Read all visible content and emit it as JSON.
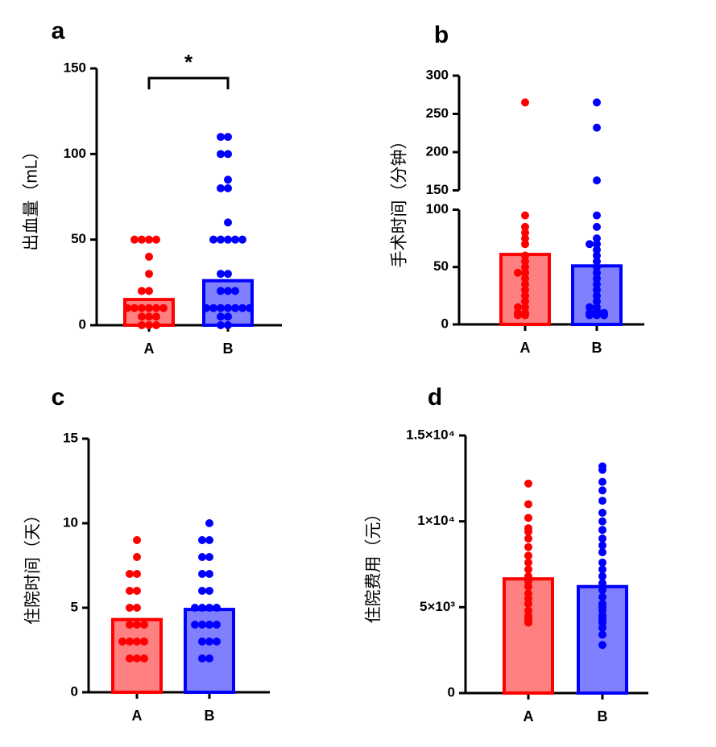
{
  "chart_data": [
    {
      "type": "bar",
      "panel": "a",
      "ylabel": "出血量（mL）",
      "categories": [
        "A",
        "B"
      ],
      "colors": [
        "#ff0000",
        "#0000ff"
      ],
      "values": [
        15,
        26
      ],
      "points": [
        [
          50,
          50,
          50,
          50,
          40,
          30,
          20,
          20,
          10,
          10,
          10,
          10,
          10,
          10,
          5,
          5,
          5,
          0,
          0,
          0
        ],
        [
          110,
          110,
          100,
          100,
          85,
          80,
          80,
          60,
          50,
          50,
          50,
          50,
          50,
          30,
          30,
          20,
          20,
          20,
          10,
          10,
          10,
          10,
          10,
          10,
          10,
          5,
          5,
          0,
          0
        ]
      ],
      "ylim": [
        0,
        150
      ],
      "yticks": [
        0,
        50,
        100,
        150
      ],
      "annotation": "*"
    },
    {
      "type": "bar",
      "panel": "b",
      "ylabel": "手术时间（分钟）",
      "categories": [
        "A",
        "B"
      ],
      "colors": [
        "#ff0000",
        "#0000ff"
      ],
      "values": [
        61,
        51
      ],
      "points": [
        [
          265,
          95,
          85,
          80,
          75,
          70,
          60,
          55,
          50,
          45,
          45,
          40,
          35,
          30,
          25,
          20,
          15,
          15,
          10,
          10,
          8,
          8
        ],
        [
          265,
          232,
          163,
          95,
          85,
          75,
          70,
          70,
          65,
          60,
          55,
          50,
          45,
          40,
          35,
          30,
          25,
          20,
          15,
          15,
          12,
          10,
          10,
          10,
          8,
          8,
          8
        ]
      ],
      "ylim": [
        0,
        300
      ],
      "ybreak": [
        100,
        150
      ],
      "yticks": [
        0,
        50,
        100,
        150,
        200,
        250,
        300
      ]
    },
    {
      "type": "bar",
      "panel": "c",
      "ylabel": "住院时间（天）",
      "categories": [
        "A",
        "B"
      ],
      "colors": [
        "#ff0000",
        "#0000ff"
      ],
      "values": [
        4.3,
        4.9
      ],
      "points": [
        [
          9,
          8,
          7,
          7,
          6,
          6,
          5,
          5,
          4,
          4,
          4,
          3,
          3,
          3,
          3,
          2,
          2,
          2
        ],
        [
          10,
          9,
          9,
          8,
          8,
          7,
          7,
          6,
          6,
          5,
          5,
          5,
          5,
          4,
          4,
          4,
          4,
          3,
          3,
          3,
          2,
          2
        ]
      ],
      "ylim": [
        0,
        15
      ],
      "yticks": [
        0,
        5,
        10,
        15
      ]
    },
    {
      "type": "bar",
      "panel": "d",
      "ylabel": "住院费用（元）",
      "categories": [
        "A",
        "B"
      ],
      "colors": [
        "#ff0000",
        "#0000ff"
      ],
      "values": [
        6650,
        6200
      ],
      "points": [
        [
          12200,
          11000,
          10200,
          9600,
          9400,
          9000,
          8500,
          8000,
          7600,
          7200,
          6800,
          6500,
          6200,
          5800,
          5500,
          5200,
          4800,
          4500,
          4300,
          4200,
          4100
        ],
        [
          13200,
          13000,
          12300,
          11800,
          11200,
          10500,
          10000,
          9500,
          9000,
          8600,
          8200,
          7600,
          7200,
          6800,
          6400,
          6000,
          5600,
          5200,
          5000,
          4800,
          4500,
          4300,
          4200,
          4100,
          3800,
          3400,
          2800
        ]
      ],
      "ylim": [
        0,
        15000
      ],
      "yticks": [
        0,
        {
          "value": 5000,
          "label": "5×10³"
        },
        {
          "value": 10000,
          "label": "1×10⁴"
        },
        {
          "value": 15000,
          "label": "1.5×10⁴"
        }
      ]
    }
  ]
}
